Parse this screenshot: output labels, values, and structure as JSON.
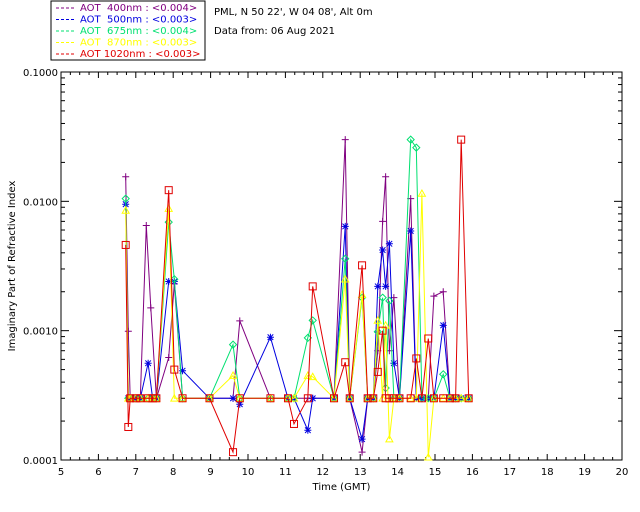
{
  "info": {
    "site": "PML, N 50 22', W 04 08', Alt 0m",
    "date": "Data from: 06 Aug 2021"
  },
  "chart_data": {
    "type": "line",
    "title": "",
    "xlabel": "Time (GMT)",
    "ylabel": "Imaginary Part of Refractive Index",
    "xlim": [
      5,
      20
    ],
    "ylim": [
      0.0001,
      0.1
    ],
    "yscale": "log",
    "grid": false,
    "legend_position": "top-left",
    "x_ticks": [
      "5",
      "6",
      "7",
      "8",
      "9",
      "10",
      "11",
      "12",
      "13",
      "14",
      "15",
      "16",
      "17",
      "18",
      "19",
      "20"
    ],
    "y_ticks": [
      {
        "value": 0.1,
        "label": "0.1000"
      },
      {
        "value": 0.01,
        "label": "0.0100"
      },
      {
        "value": 0.001,
        "label": "0.0010"
      },
      {
        "value": 0.0001,
        "label": "0.0001"
      }
    ],
    "series": [
      {
        "name": "AOT  400nm : <0.004>",
        "color": "#800080",
        "marker": "plus",
        "x": [
          6.73,
          6.8,
          6.85,
          7.0,
          7.12,
          7.28,
          7.4,
          7.55,
          7.88,
          8.03,
          8.25,
          8.97,
          9.6,
          9.78,
          10.6,
          11.07,
          11.23,
          11.6,
          11.73,
          12.3,
          12.6,
          12.72,
          13.05,
          13.2,
          13.35,
          13.47,
          13.6,
          13.68,
          13.78,
          13.9,
          14.05,
          14.35,
          14.5,
          14.65,
          14.82,
          14.97,
          15.22,
          15.4,
          15.55,
          15.7,
          15.9
        ],
        "y": [
          0.0155,
          0.00099,
          0.0003,
          0.0003,
          0.0003,
          0.0065,
          0.0015,
          0.0003,
          0.00062,
          0.0023,
          0.0003,
          0.0003,
          0.0003,
          0.00119,
          0.0003,
          0.0003,
          0.0003,
          0.0003,
          0.0003,
          0.0003,
          0.03,
          0.0003,
          0.000115,
          0.0003,
          0.0003,
          0.0007,
          0.007,
          0.0155,
          0.0007,
          0.0018,
          0.0003,
          0.0105,
          0.0003,
          0.0003,
          0.0003,
          0.00185,
          0.002,
          0.0003,
          0.0003,
          0.0003,
          0.0003
        ]
      },
      {
        "name": "AOT  500nm : <0.003>",
        "color": "#0000e0",
        "marker": "asterisk",
        "x": [
          6.73,
          6.8,
          6.85,
          7.0,
          7.12,
          7.33,
          7.45,
          7.55,
          7.88,
          8.03,
          8.25,
          8.97,
          9.6,
          9.78,
          10.6,
          11.07,
          11.23,
          11.6,
          11.73,
          12.3,
          12.6,
          12.72,
          13.05,
          13.2,
          13.35,
          13.47,
          13.6,
          13.68,
          13.78,
          13.9,
          14.05,
          14.35,
          14.5,
          14.65,
          14.82,
          14.97,
          15.22,
          15.4,
          15.55,
          15.7,
          15.9
        ],
        "y": [
          0.0095,
          0.0003,
          0.0003,
          0.0003,
          0.0003,
          0.00056,
          0.0003,
          0.0003,
          0.0024,
          0.0024,
          0.00049,
          0.0003,
          0.0003,
          0.00027,
          0.00089,
          0.0003,
          0.0003,
          0.00017,
          0.0003,
          0.0003,
          0.0064,
          0.0003,
          0.000145,
          0.0003,
          0.0003,
          0.0022,
          0.0042,
          0.0022,
          0.0047,
          0.00056,
          0.0003,
          0.0059,
          0.0003,
          0.0003,
          0.0003,
          0.0003,
          0.0011,
          0.0003,
          0.0003,
          0.0003,
          0.0003
        ]
      },
      {
        "name": "AOT  675nm : <0.004>",
        "color": "#00e070",
        "marker": "diamond",
        "x": [
          6.73,
          6.8,
          6.85,
          7.0,
          7.12,
          7.33,
          7.45,
          7.55,
          7.88,
          8.03,
          8.25,
          8.97,
          9.6,
          9.78,
          10.6,
          11.07,
          11.23,
          11.6,
          11.73,
          12.3,
          12.6,
          12.72,
          13.05,
          13.2,
          13.35,
          13.47,
          13.6,
          13.68,
          13.78,
          13.9,
          14.05,
          14.35,
          14.5,
          14.65,
          14.82,
          14.97,
          15.22,
          15.4,
          15.55,
          15.7,
          15.9
        ],
        "y": [
          0.0105,
          0.0003,
          0.0003,
          0.0003,
          0.0003,
          0.0003,
          0.0003,
          0.0003,
          0.0069,
          0.0025,
          0.0003,
          0.0003,
          0.00078,
          0.0003,
          0.0003,
          0.0003,
          0.0003,
          0.00088,
          0.0012,
          0.0003,
          0.0036,
          0.0003,
          0.0018,
          0.0003,
          0.0003,
          0.00098,
          0.0018,
          0.00036,
          0.0017,
          0.0003,
          0.0003,
          0.03,
          0.026,
          0.0003,
          0.0003,
          0.0003,
          0.00046,
          0.0003,
          0.0003,
          0.0003,
          0.0003
        ]
      },
      {
        "name": "AOT  870nm : <0.003>",
        "color": "#ffff00",
        "marker": "triangle",
        "x": [
          6.73,
          6.8,
          6.85,
          7.0,
          7.12,
          7.33,
          7.45,
          7.55,
          7.88,
          8.03,
          8.25,
          8.97,
          9.6,
          9.78,
          10.6,
          11.07,
          11.23,
          11.6,
          11.73,
          12.3,
          12.6,
          12.72,
          13.05,
          13.2,
          13.35,
          13.47,
          13.6,
          13.68,
          13.78,
          13.9,
          14.05,
          14.35,
          14.5,
          14.65,
          14.82,
          14.97,
          15.22,
          15.4,
          15.55,
          15.7,
          15.9
        ],
        "y": [
          0.0085,
          0.0003,
          0.0003,
          0.0003,
          0.0003,
          0.0003,
          0.0003,
          0.0003,
          0.0088,
          0.0003,
          0.0003,
          0.0003,
          0.00045,
          0.0003,
          0.0003,
          0.0003,
          0.0003,
          0.00045,
          0.00044,
          0.0003,
          0.0025,
          0.0003,
          0.0019,
          0.0003,
          0.0003,
          0.0012,
          0.0003,
          0.0011,
          0.000145,
          0.0003,
          0.0003,
          0.0003,
          0.0003,
          0.0115,
          0.000105,
          0.0003,
          0.0003,
          0.0003,
          0.0003,
          0.0003,
          0.0003
        ]
      },
      {
        "name": "AOT 1020nm : <0.003>",
        "color": "#e00000",
        "marker": "square",
        "x": [
          6.73,
          6.8,
          6.85,
          7.0,
          7.12,
          7.33,
          7.45,
          7.55,
          7.88,
          8.03,
          8.25,
          8.97,
          9.6,
          9.78,
          10.6,
          11.07,
          11.23,
          11.6,
          11.73,
          12.3,
          12.6,
          12.72,
          13.05,
          13.2,
          13.35,
          13.47,
          13.6,
          13.68,
          13.78,
          13.9,
          14.05,
          14.35,
          14.5,
          14.65,
          14.82,
          14.97,
          15.22,
          15.4,
          15.55,
          15.7,
          15.9
        ],
        "y": [
          0.0046,
          0.00018,
          0.0003,
          0.0003,
          0.0003,
          0.0003,
          0.0003,
          0.0003,
          0.0122,
          0.0005,
          0.0003,
          0.0003,
          0.000115,
          0.0003,
          0.0003,
          0.0003,
          0.00019,
          0.0003,
          0.0022,
          0.0003,
          0.00057,
          0.0003,
          0.0032,
          0.0003,
          0.0003,
          0.00048,
          0.001,
          0.0003,
          0.0003,
          0.0003,
          0.0003,
          0.0003,
          0.00061,
          0.0003,
          0.00087,
          0.0003,
          0.0003,
          0.0003,
          0.0003,
          0.03,
          0.0003
        ]
      }
    ]
  }
}
